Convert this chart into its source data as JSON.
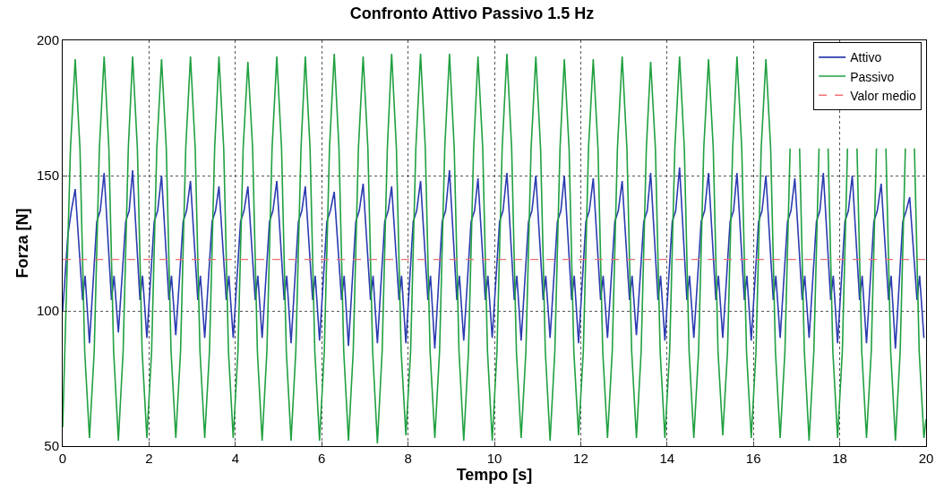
{
  "chart_data": {
    "type": "line",
    "title": "Confronto Attivo Passivo 1.5 Hz",
    "xlabel": "Tempo [s]",
    "ylabel": "Forza [N]",
    "xlim": [
      0,
      20
    ],
    "xticks": [
      0,
      2,
      4,
      6,
      8,
      10,
      12,
      14,
      16,
      18,
      20
    ],
    "ylim": [
      50,
      200
    ],
    "yticks": [
      50,
      100,
      150,
      200
    ],
    "grid": true,
    "legend": "top right",
    "line_style": "solid",
    "series": [
      {
        "name": "Attivo",
        "color": "#2b3bb0",
        "x": [
          0,
          0.12,
          0.2,
          0.29,
          0.46,
          0.52,
          0.62,
          0.79,
          0.87,
          0.96,
          1.13,
          1.19,
          1.29,
          1.46,
          1.54,
          1.62,
          1.79,
          1.85,
          1.95,
          2.12,
          2.2,
          2.29,
          2.46,
          2.52,
          2.62,
          2.79,
          2.87,
          2.96,
          3.13,
          3.19,
          3.29,
          3.46,
          3.54,
          3.62,
          3.79,
          3.85,
          3.95,
          4.12,
          4.2,
          4.29,
          4.46,
          4.52,
          4.62,
          4.79,
          4.87,
          4.96,
          5.13,
          5.19,
          5.29,
          5.46,
          5.54,
          5.62,
          5.79,
          5.85,
          5.95,
          6.12,
          6.2,
          6.29,
          6.46,
          6.52,
          6.62,
          6.79,
          6.87,
          6.96,
          7.13,
          7.19,
          7.29,
          7.46,
          7.54,
          7.62,
          7.79,
          7.85,
          7.95,
          8.12,
          8.2,
          8.29,
          8.46,
          8.52,
          8.62,
          8.79,
          8.87,
          8.96,
          9.13,
          9.19,
          9.29,
          9.46,
          9.54,
          9.62,
          9.79,
          9.85,
          9.95,
          10.12,
          10.2,
          10.29,
          10.46,
          10.52,
          10.62,
          10.79,
          10.87,
          10.96,
          11.13,
          11.19,
          11.29,
          11.46,
          11.54,
          11.62,
          11.79,
          11.85,
          11.95,
          12.12,
          12.2,
          12.29,
          12.46,
          12.52,
          12.62,
          12.79,
          12.87,
          12.96,
          13.13,
          13.19,
          13.29,
          13.46,
          13.54,
          13.62,
          13.79,
          13.85,
          13.95,
          14.12,
          14.2,
          14.29,
          14.46,
          14.52,
          14.62,
          14.79,
          14.87,
          14.96,
          15.13,
          15.19,
          15.29,
          15.46,
          15.54,
          15.62,
          15.79,
          15.85,
          15.95,
          16.12,
          16.2,
          16.29,
          16.46,
          16.52,
          16.62,
          16.79,
          16.87,
          16.96,
          17.13,
          17.19,
          17.29,
          17.46,
          17.54,
          17.62,
          17.79,
          17.85,
          17.95,
          18.12,
          18.2,
          18.29,
          18.46,
          18.52,
          18.62,
          18.79,
          18.87,
          18.96,
          19.13,
          19.19,
          19.29,
          19.46,
          19.54,
          19.62,
          19.79,
          19.85,
          19.95
        ],
        "values": [
          100,
          128,
          137,
          145,
          104,
          113,
          88,
          133,
          137,
          151,
          104,
          113,
          92,
          133,
          137,
          152,
          104,
          113,
          90,
          133,
          137,
          150,
          104,
          113,
          91,
          133,
          137,
          148,
          104,
          113,
          90,
          133,
          137,
          146,
          104,
          113,
          90,
          133,
          137,
          146,
          104,
          113,
          90,
          133,
          137,
          148,
          104,
          113,
          88,
          133,
          137,
          146,
          104,
          113,
          89,
          133,
          137,
          144,
          104,
          113,
          87,
          133,
          137,
          147,
          104,
          113,
          88,
          133,
          137,
          146,
          104,
          113,
          88,
          133,
          137,
          148,
          104,
          113,
          86,
          133,
          137,
          152,
          104,
          113,
          89,
          133,
          137,
          149,
          104,
          113,
          90,
          133,
          137,
          151,
          104,
          113,
          89,
          133,
          137,
          150,
          104,
          113,
          90,
          133,
          137,
          150,
          104,
          113,
          88,
          133,
          137,
          149,
          104,
          113,
          90,
          133,
          137,
          148,
          104,
          113,
          91,
          133,
          137,
          151,
          104,
          113,
          89,
          133,
          137,
          153,
          104,
          113,
          90,
          133,
          137,
          151,
          104,
          113,
          90,
          133,
          137,
          151,
          104,
          113,
          89,
          133,
          137,
          150,
          104,
          113,
          90,
          133,
          137,
          149,
          104,
          113,
          90,
          133,
          137,
          151,
          104,
          113,
          88,
          133,
          137,
          150,
          104,
          113,
          88,
          133,
          137,
          147,
          104,
          113,
          86,
          133,
          137,
          142,
          104,
          113,
          90
        ]
      },
      {
        "name": "Passivo",
        "color": "#20a040",
        "x": [
          0,
          0.18,
          0.29,
          0.4,
          0.51,
          0.62,
          0.73,
          0.85,
          0.96,
          1.07,
          1.18,
          1.29,
          1.4,
          1.52,
          1.62,
          1.73,
          1.84,
          1.95,
          2.06,
          2.18,
          2.29,
          2.4,
          2.51,
          2.62,
          2.73,
          2.85,
          2.96,
          3.07,
          3.18,
          3.29,
          3.4,
          3.52,
          3.62,
          3.73,
          3.84,
          3.95,
          4.06,
          4.18,
          4.29,
          4.4,
          4.51,
          4.62,
          4.73,
          4.85,
          4.96,
          5.07,
          5.18,
          5.29,
          5.4,
          5.52,
          5.62,
          5.73,
          5.84,
          5.95,
          6.06,
          6.18,
          6.29,
          6.4,
          6.51,
          6.62,
          6.73,
          6.85,
          6.96,
          7.07,
          7.18,
          7.29,
          7.4,
          7.52,
          7.62,
          7.73,
          7.84,
          7.95,
          8.06,
          8.18,
          8.29,
          8.4,
          8.51,
          8.62,
          8.73,
          8.85,
          8.96,
          9.07,
          9.18,
          9.29,
          9.4,
          9.52,
          9.62,
          9.73,
          9.84,
          9.95,
          10.06,
          10.18,
          10.29,
          10.4,
          10.51,
          10.62,
          10.73,
          10.85,
          10.96,
          11.07,
          11.18,
          11.29,
          11.4,
          11.52,
          11.62,
          11.73,
          11.84,
          11.95,
          12.06,
          12.18,
          12.29,
          12.4,
          12.51,
          12.62,
          12.73,
          12.85,
          12.96,
          13.07,
          13.18,
          13.29,
          13.4,
          13.52,
          13.62,
          13.73,
          13.84,
          13.95,
          14.06,
          14.18,
          14.29,
          14.4,
          14.51,
          14.62,
          14.73,
          14.85,
          14.96,
          15.07,
          15.18,
          15.29,
          15.4,
          15.52,
          15.62,
          15.73,
          15.84,
          15.95,
          16.06,
          16.18,
          16.29,
          16.4,
          16.51,
          16.62,
          16.73,
          16.85,
          16.96,
          17.07,
          17.18,
          17.29,
          17.4,
          17.52,
          17.62,
          17.73,
          17.84,
          17.95,
          18.06,
          18.18,
          18.29,
          18.4,
          18.51,
          18.62,
          18.73,
          18.85,
          18.96,
          19.07,
          19.18,
          19.29,
          19.4,
          19.52,
          19.62,
          19.73,
          19.84,
          19.95,
          20
        ],
        "values": [
          57,
          160,
          193,
          160,
          85,
          53,
          85,
          160,
          194,
          160,
          85,
          52,
          85,
          160,
          194,
          160,
          85,
          53,
          85,
          160,
          193,
          160,
          85,
          53,
          85,
          160,
          194,
          160,
          85,
          53,
          85,
          160,
          194,
          160,
          85,
          53,
          85,
          160,
          192,
          160,
          85,
          52,
          85,
          160,
          194,
          160,
          85,
          52,
          85,
          160,
          194,
          160,
          85,
          52,
          85,
          160,
          195,
          160,
          85,
          52,
          85,
          160,
          194,
          160,
          85,
          51,
          85,
          160,
          195,
          160,
          85,
          54,
          85,
          160,
          195,
          160,
          85,
          53,
          85,
          160,
          195,
          160,
          85,
          52,
          85,
          160,
          194,
          160,
          85,
          52,
          85,
          160,
          195,
          160,
          85,
          53,
          85,
          160,
          194,
          160,
          85,
          52,
          85,
          160,
          193,
          160,
          85,
          54,
          85,
          160,
          193,
          160,
          85,
          53,
          85,
          160,
          194,
          160,
          85,
          53,
          85,
          160,
          192,
          160,
          85,
          53,
          85,
          160,
          194,
          160,
          85,
          53,
          85,
          160,
          193,
          160,
          85,
          54,
          85,
          160,
          194,
          160,
          85,
          53,
          85,
          160,
          193,
          160,
          85,
          53,
          85,
          160,
          null,
          160,
          85,
          52,
          85,
          160,
          null,
          160,
          85,
          53,
          85,
          160,
          null,
          160,
          85,
          53,
          85,
          160,
          null,
          160,
          85,
          52,
          85,
          160,
          null,
          160,
          85,
          53,
          60
        ]
      }
    ],
    "ref_lines": [
      {
        "axis": "y",
        "value": 119,
        "label": "Valor medio",
        "color": "#f07070",
        "line_style": "dashed"
      }
    ]
  }
}
